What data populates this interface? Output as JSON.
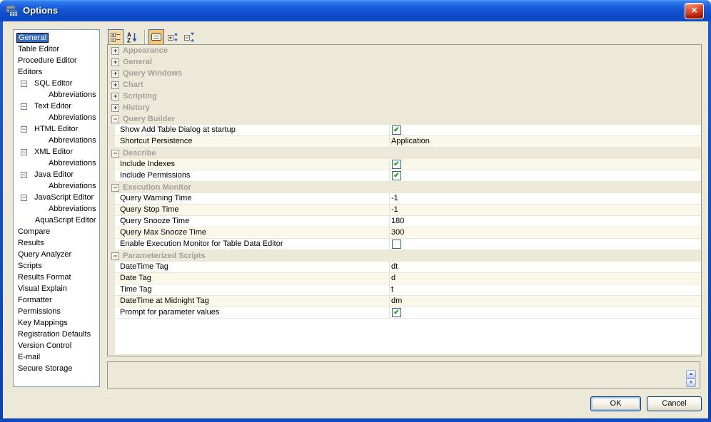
{
  "window": {
    "title": "Options",
    "icon": "options-app-icon",
    "close_label": "×"
  },
  "colors": {
    "title_blue": "#1659d8",
    "selection_blue": "#316ac5",
    "dialog_background": "#ece9d8",
    "check_green": "#1e9e1e",
    "category_text": "#a3a199"
  },
  "toolbar": {
    "buttons": [
      {
        "name": "categorized-view",
        "icon": "categorized-icon",
        "toggled": true
      },
      {
        "name": "alphabetical-sort",
        "icon": "az-sort-icon",
        "toggled": false
      },
      {
        "name": "show-description",
        "icon": "description-icon",
        "toggled": true
      },
      {
        "name": "expand-all",
        "icon": "expand-all-icon",
        "toggled": false
      },
      {
        "name": "collapse-all",
        "icon": "collapse-all-icon",
        "toggled": false
      }
    ]
  },
  "sidebar": {
    "items": [
      {
        "label": "General",
        "indent": 0,
        "selected": true
      },
      {
        "label": "Table Editor",
        "indent": 0
      },
      {
        "label": "Procedure Editor",
        "indent": 0
      },
      {
        "label": "Editors",
        "indent": 0
      },
      {
        "label": "SQL Editor",
        "indent": 1,
        "expander": "minus"
      },
      {
        "label": "Abbreviations",
        "indent": 2
      },
      {
        "label": "Text Editor",
        "indent": 1,
        "expander": "minus"
      },
      {
        "label": "Abbreviations",
        "indent": 2
      },
      {
        "label": "HTML Editor",
        "indent": 1,
        "expander": "minus"
      },
      {
        "label": "Abbreviations",
        "indent": 2
      },
      {
        "label": "XML Editor",
        "indent": 1,
        "expander": "minus"
      },
      {
        "label": "Abbreviations",
        "indent": 2
      },
      {
        "label": "Java Editor",
        "indent": 1,
        "expander": "minus"
      },
      {
        "label": "Abbreviations",
        "indent": 2
      },
      {
        "label": "JavaScript Editor",
        "indent": 1,
        "expander": "minus"
      },
      {
        "label": "Abbreviations",
        "indent": 2
      },
      {
        "label": "AquaScript Editor",
        "indent": 1
      },
      {
        "label": "Compare",
        "indent": 0
      },
      {
        "label": "Results",
        "indent": 0
      },
      {
        "label": "Query Analyzer",
        "indent": 0
      },
      {
        "label": "Scripts",
        "indent": 0
      },
      {
        "label": "Results Format",
        "indent": 0
      },
      {
        "label": "Visual Explain",
        "indent": 0
      },
      {
        "label": "Formatter",
        "indent": 0
      },
      {
        "label": "Permissions",
        "indent": 0
      },
      {
        "label": "Key Mappings",
        "indent": 0
      },
      {
        "label": "Registration Defaults",
        "indent": 0
      },
      {
        "label": "Version Control",
        "indent": 0
      },
      {
        "label": "E-mail",
        "indent": 0
      },
      {
        "label": "Secure Storage",
        "indent": 0
      }
    ]
  },
  "grid": {
    "sections": [
      {
        "label": "Appearance",
        "expanded": false,
        "rows": []
      },
      {
        "label": "General",
        "expanded": false,
        "rows": []
      },
      {
        "label": "Query Windows",
        "expanded": false,
        "rows": []
      },
      {
        "label": "Chart",
        "expanded": false,
        "rows": []
      },
      {
        "label": "Scripting",
        "expanded": false,
        "rows": []
      },
      {
        "label": "History",
        "expanded": false,
        "rows": []
      },
      {
        "label": "Query Builder",
        "expanded": true,
        "rows": [
          {
            "label": "Show Add Table Dialog at startup",
            "type": "checkbox",
            "checked": true
          },
          {
            "label": "Shortcut Persistence",
            "type": "text",
            "value": "Application"
          }
        ]
      },
      {
        "label": "Describe",
        "expanded": true,
        "rows": [
          {
            "label": "Include Indexes",
            "type": "checkbox",
            "checked": true
          },
          {
            "label": "Include Permissions",
            "type": "checkbox",
            "checked": true
          }
        ]
      },
      {
        "label": "Execution Monitor",
        "expanded": true,
        "rows": [
          {
            "label": "Query Warning Time",
            "type": "text",
            "value": "-1"
          },
          {
            "label": "Query Stop Time",
            "type": "text",
            "value": "-1"
          },
          {
            "label": "Query Snooze Time",
            "type": "text",
            "value": "180"
          },
          {
            "label": "Query Max Snooze Time",
            "type": "text",
            "value": "300"
          },
          {
            "label": "Enable Execution Monitor for Table Data Editor",
            "type": "checkbox",
            "checked": false
          }
        ]
      },
      {
        "label": "Parameterized Scripts",
        "expanded": true,
        "rows": [
          {
            "label": "DateTime Tag",
            "type": "text",
            "value": "dt"
          },
          {
            "label": "Date Tag",
            "type": "text",
            "value": "d"
          },
          {
            "label": "Time Tag",
            "type": "text",
            "value": "t"
          },
          {
            "label": "DateTime at Midnight Tag",
            "type": "text",
            "value": "dm"
          },
          {
            "label": "Prompt for parameter values",
            "type": "checkbox",
            "checked": true
          }
        ]
      }
    ]
  },
  "description_panel": {
    "text": ""
  },
  "buttons": {
    "ok": "OK",
    "cancel": "Cancel"
  }
}
